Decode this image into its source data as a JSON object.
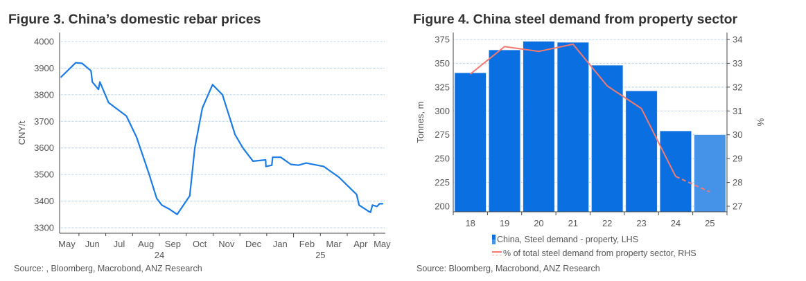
{
  "colors": {
    "line": "#1a7be6",
    "bar": "#0a6fe0",
    "bar_forecast": "#4493e8",
    "pct_line": "#f47a70",
    "grid": "#b8c6d6"
  },
  "chart_data": [
    {
      "type": "line",
      "title": "Figure 3.  China’s domestic rebar prices",
      "ylabel": "CNY/t",
      "xlabel": "",
      "ylim": [
        3280,
        4010
      ],
      "yticks": [
        3300,
        3400,
        3500,
        3600,
        3700,
        3800,
        3900,
        4000
      ],
      "xlim": [
        0.28,
        12.42
      ],
      "x_units": "months since 1 May 2024",
      "xtick_labels": [
        "May",
        "Jun",
        "Jul",
        "Aug",
        "Sep",
        "Oct",
        "Nov",
        "Dec",
        "Jan",
        "Feb",
        "Mar",
        "Apr",
        "May"
      ],
      "year_labels": [
        {
          "label": "24",
          "at": 4.0
        },
        {
          "label": "25",
          "at": 10.0
        }
      ],
      "grid": true,
      "series": [
        {
          "name": "Rebar price",
          "points": [
            [
              0.32,
              3865
            ],
            [
              0.88,
              3920
            ],
            [
              1.12,
              3918
            ],
            [
              1.45,
              3890
            ],
            [
              1.5,
              3848
            ],
            [
              1.73,
              3820
            ],
            [
              1.78,
              3848
            ],
            [
              2.11,
              3770
            ],
            [
              2.77,
              3720
            ],
            [
              3.15,
              3640
            ],
            [
              3.62,
              3500
            ],
            [
              3.9,
              3410
            ],
            [
              4.09,
              3385
            ],
            [
              4.37,
              3370
            ],
            [
              4.66,
              3350
            ],
            [
              5.13,
              3420
            ],
            [
              5.32,
              3600
            ],
            [
              5.6,
              3750
            ],
            [
              5.98,
              3838
            ],
            [
              6.35,
              3800
            ],
            [
              6.82,
              3650
            ],
            [
              7.11,
              3600
            ],
            [
              7.49,
              3550
            ],
            [
              7.96,
              3555
            ],
            [
              7.97,
              3530
            ],
            [
              8.19,
              3535
            ],
            [
              8.22,
              3565
            ],
            [
              8.52,
              3565
            ],
            [
              8.9,
              3538
            ],
            [
              9.18,
              3535
            ],
            [
              9.47,
              3543
            ],
            [
              10.13,
              3530
            ],
            [
              10.69,
              3490
            ],
            [
              11.35,
              3425
            ],
            [
              11.44,
              3385
            ],
            [
              11.82,
              3360
            ],
            [
              11.87,
              3358
            ],
            [
              11.94,
              3385
            ],
            [
              12.11,
              3380
            ],
            [
              12.2,
              3390
            ],
            [
              12.34,
              3390
            ]
          ]
        }
      ],
      "source": "Source: , Bloomberg, Macrobond, ANZ Research"
    },
    {
      "type": "bar",
      "title": "Figure 4.  China steel demand from property sector",
      "categories": [
        "18",
        "19",
        "20",
        "21",
        "22",
        "23",
        "24",
        "25"
      ],
      "ylabel": "Tonnes, m",
      "ylim": [
        195,
        378
      ],
      "yticks": [
        200,
        225,
        250,
        275,
        300,
        325,
        350,
        375
      ],
      "y2label": "%",
      "y2lim": [
        26.86,
        34.07
      ],
      "y2ticks": [
        27,
        28,
        29,
        30,
        31,
        32,
        33,
        34
      ],
      "grid": true,
      "series": [
        {
          "name": "China, Steel demand - property, LHS",
          "type": "bar",
          "values": [
            340,
            364,
            373,
            372,
            348,
            321,
            279,
            275
          ],
          "forecast_from_index": 7
        },
        {
          "name": "% of total steel demand from property sector, RHS",
          "type": "line",
          "axis": "right",
          "values": [
            32.55,
            33.7,
            33.5,
            33.8,
            32.05,
            31.1,
            28.25,
            27.6
          ],
          "dashed_from_index": 6
        }
      ],
      "legend_position": "bottom",
      "source": "Source: Bloomberg, Macrobond, ANZ Research"
    }
  ]
}
